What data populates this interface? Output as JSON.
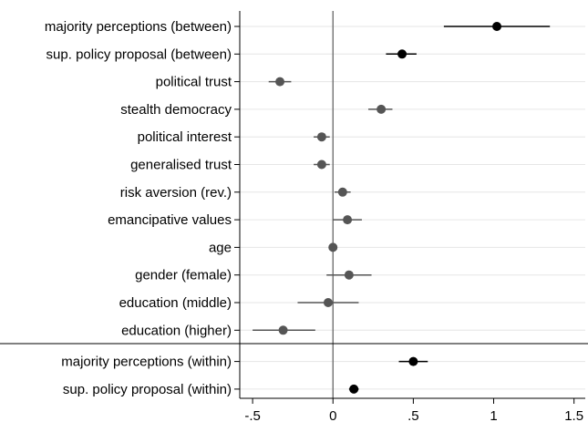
{
  "chart_data": {
    "type": "scatter",
    "subtype": "coefficient-plot-with-confidence-intervals",
    "x_ticks": [
      -0.5,
      0,
      0.5,
      1,
      1.5
    ],
    "x_tick_labels": [
      "-.5",
      "0",
      ".5",
      "1",
      "1.5"
    ],
    "xlim": [
      -0.58,
      1.57
    ],
    "reference_line_x": 0,
    "grid": "horizontal",
    "colors": {
      "between_within": "#000000",
      "controls": "#555555",
      "ci_line": "#000000",
      "grid": "#e6e6e6",
      "axis": "#000000",
      "zero_line": "#666666"
    },
    "items": [
      {
        "label": "majority perceptions (between)",
        "estimate": 1.02,
        "ci": [
          0.69,
          1.35
        ],
        "group": "between"
      },
      {
        "label": "sup. policy proposal (between)",
        "estimate": 0.43,
        "ci": [
          0.33,
          0.52
        ],
        "group": "between"
      },
      {
        "label": "political trust",
        "estimate": -0.33,
        "ci": [
          -0.4,
          -0.26
        ],
        "group": "control"
      },
      {
        "label": "stealth democracy",
        "estimate": 0.3,
        "ci": [
          0.22,
          0.37
        ],
        "group": "control"
      },
      {
        "label": "political interest",
        "estimate": -0.07,
        "ci": [
          -0.12,
          -0.02
        ],
        "group": "control"
      },
      {
        "label": "generalised trust",
        "estimate": -0.07,
        "ci": [
          -0.12,
          -0.02
        ],
        "group": "control"
      },
      {
        "label": "risk aversion (rev.)",
        "estimate": 0.06,
        "ci": [
          0.01,
          0.11
        ],
        "group": "control"
      },
      {
        "label": "emancipative values",
        "estimate": 0.09,
        "ci": [
          0.0,
          0.18
        ],
        "group": "control"
      },
      {
        "label": "age",
        "estimate": 0.0,
        "ci": [
          -0.01,
          0.01
        ],
        "group": "control"
      },
      {
        "label": "gender (female)",
        "estimate": 0.1,
        "ci": [
          -0.04,
          0.24
        ],
        "group": "control"
      },
      {
        "label": "education (middle)",
        "estimate": -0.03,
        "ci": [
          -0.22,
          0.16
        ],
        "group": "control"
      },
      {
        "label": "education (higher)",
        "estimate": -0.31,
        "ci": [
          -0.5,
          -0.11
        ],
        "group": "control"
      },
      {
        "label": "majority perceptions (within)",
        "estimate": 0.5,
        "ci": [
          0.41,
          0.59
        ],
        "group": "within"
      },
      {
        "label": "sup. policy proposal (within)",
        "estimate": 0.13,
        "ci": [
          0.1,
          0.16
        ],
        "group": "within"
      }
    ]
  }
}
